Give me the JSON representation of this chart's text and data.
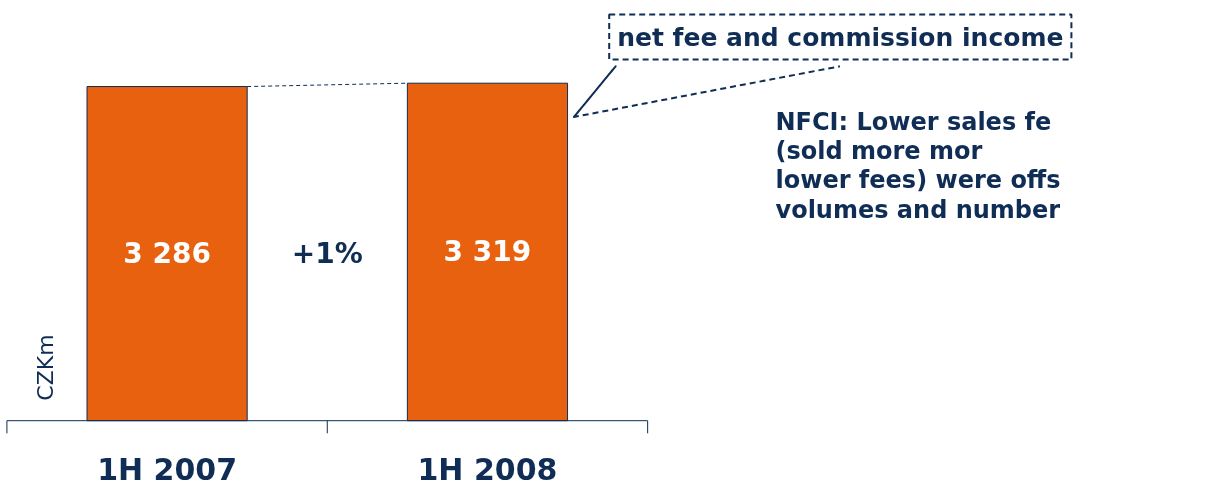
{
  "chart_data": {
    "type": "bar",
    "ylabel": "CZKm",
    "categories": [
      "1H 2007",
      "1H 2008"
    ],
    "values": [
      3286,
      3319
    ],
    "value_labels": [
      "3 286",
      "3 319"
    ],
    "color": "#e8610e",
    "annotations": [
      "+1%",
      "net fee and commission income",
      "NFCI: Lower sales fe\n(sold more mor\nlower fees) were offs\nvolumes and number"
    ]
  }
}
